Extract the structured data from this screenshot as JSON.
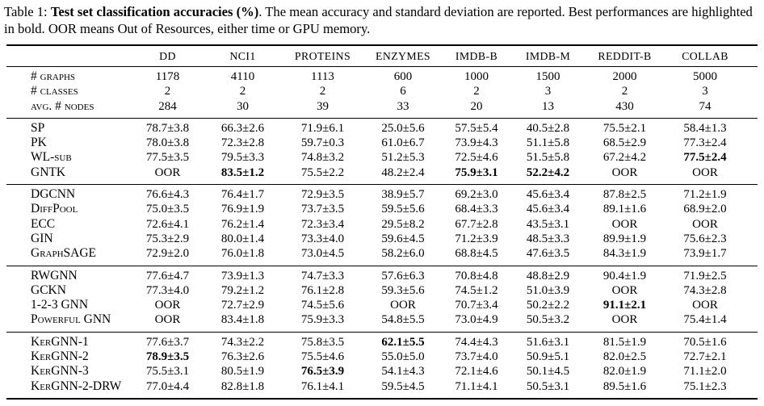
{
  "caption": {
    "prefix": "Table 1: ",
    "bold": "Test set classification accuracies (%)",
    "rest": ". The mean accuracy and standard deviation are reported. Best performances are highlighted in bold. OOR means Out of Resources, either time or GPU memory."
  },
  "table": {
    "columns": [
      "DD",
      "NCI1",
      "PROTEINS",
      "ENZYMES",
      "IMDB-B",
      "IMDB-M",
      "REDDIT-B",
      "COLLAB"
    ],
    "sections": [
      {
        "name": "dataset-stats",
        "rows": [
          {
            "label": "# graphs",
            "values": [
              "1178",
              "4110",
              "1113",
              "600",
              "1000",
              "1500",
              "2000",
              "5000"
            ]
          },
          {
            "label": "# classes",
            "values": [
              "2",
              "2",
              "2",
              "6",
              "2",
              "3",
              "2",
              "3"
            ]
          },
          {
            "label": "avg. # nodes",
            "values": [
              "284",
              "30",
              "39",
              "33",
              "20",
              "13",
              "430",
              "74"
            ]
          }
        ]
      },
      {
        "name": "graph-kernels",
        "rows": [
          {
            "label": "SP",
            "values": [
              "78.7±3.8",
              "66.3±2.6",
              "71.9±6.1",
              "25.0±5.6",
              "57.5±5.4",
              "40.5±2.8",
              "75.5±2.1",
              "58.4±1.3"
            ]
          },
          {
            "label": "PK",
            "values": [
              "78.0±3.8",
              "72.3±2.8",
              "59.7±0.3",
              "61.0±6.7",
              "73.9±4.3",
              "51.1±5.8",
              "68.5±2.9",
              "77.3±2.4"
            ]
          },
          {
            "label": "WL-sub",
            "values": [
              "77.5±3.5",
              "79.5±3.3",
              "74.8±3.2",
              "51.2±5.3",
              "72.5±4.6",
              "51.5±5.8",
              "67.2±4.2",
              "77.5±2.4"
            ],
            "bold": [
              7
            ]
          },
          {
            "label": "GNTK",
            "values": [
              "OOR",
              "83.5±1.2",
              "75.5±2.2",
              "48.2±2.4",
              "75.9±3.1",
              "52.2±4.2",
              "OOR",
              "OOR"
            ],
            "bold": [
              1,
              4,
              5
            ]
          }
        ]
      },
      {
        "name": "gnn-baselines",
        "rows": [
          {
            "label": "DGCNN",
            "values": [
              "76.6±4.3",
              "76.4±1.7",
              "72.9±3.5",
              "38.9±5.7",
              "69.2±3.0",
              "45.6±3.4",
              "87.8±2.5",
              "71.2±1.9"
            ]
          },
          {
            "label": "DiffPool",
            "values": [
              "75.0±3.5",
              "76.9±1.9",
              "73.7±3.5",
              "59.5±5.6",
              "68.4±3.3",
              "45.6±3.4",
              "89.1±1.6",
              "68.9±2.0"
            ]
          },
          {
            "label": "ECC",
            "values": [
              "72.6±4.1",
              "76.2±1.4",
              "72.3±3.4",
              "29.5±8.2",
              "67.7±2.8",
              "43.5±3.1",
              "OOR",
              "OOR"
            ]
          },
          {
            "label": "GIN",
            "values": [
              "75.3±2.9",
              "80.0±1.4",
              "73.3±4.0",
              "59.6±4.5",
              "71.2±3.9",
              "48.5±3.3",
              "89.9±1.9",
              "75.6±2.3"
            ]
          },
          {
            "label": "GraphSAGE",
            "values": [
              "72.9±2.0",
              "76.0±1.8",
              "73.0±4.5",
              "58.2±6.0",
              "68.8±4.5",
              "47.6±3.5",
              "84.3±1.9",
              "73.9±1.7"
            ]
          }
        ]
      },
      {
        "name": "advanced-gnns",
        "rows": [
          {
            "label": "RWGNN",
            "values": [
              "77.6±4.7",
              "73.9±1.3",
              "74.7±3.3",
              "57.6±6.3",
              "70.8±4.8",
              "48.8±2.9",
              "90.4±1.9",
              "71.9±2.5"
            ]
          },
          {
            "label": "GCKN",
            "values": [
              "77.3±4.0",
              "79.2±1.2",
              "76.1±2.8",
              "59.3±5.6",
              "74.5±1.2",
              "51.0±3.9",
              "OOR",
              "74.3±2.8"
            ]
          },
          {
            "label": "1-2-3 GNN",
            "values": [
              "OOR",
              "72.7±2.9",
              "74.5±5.6",
              "OOR",
              "70.7±3.4",
              "50.2±2.2",
              "91.1±2.1",
              "OOR"
            ],
            "bold": [
              6
            ]
          },
          {
            "label": "Powerful GNN",
            "values": [
              "OOR",
              "83.4±1.8",
              "75.9±3.3",
              "54.8±5.5",
              "73.0±4.9",
              "50.5±3.2",
              "OOR",
              "75.4±1.4"
            ]
          }
        ]
      },
      {
        "name": "kergnn-variants",
        "rows": [
          {
            "label": "KerGNN-1",
            "values": [
              "77.6±3.7",
              "74.3±2.2",
              "75.8±3.5",
              "62.1±5.5",
              "74.4±4.3",
              "51.6±3.1",
              "81.5±1.9",
              "70.5±1.6"
            ],
            "bold": [
              3
            ]
          },
          {
            "label": "KerGNN-2",
            "values": [
              "78.9±3.5",
              "76.3±2.6",
              "75.5±4.6",
              "55.0±5.0",
              "73.7±4.0",
              "50.9±5.1",
              "82.0±2.5",
              "72.7±2.1"
            ],
            "bold": [
              0
            ]
          },
          {
            "label": "KerGNN-3",
            "values": [
              "75.5±3.1",
              "80.5±1.9",
              "76.5±3.9",
              "54.1±4.3",
              "72.1±4.6",
              "50.1±4.5",
              "82.0±1.9",
              "71.1±2.0"
            ],
            "bold": [
              2
            ]
          },
          {
            "label": "KerGNN-2-DRW",
            "values": [
              "77.0±4.4",
              "82.8±1.8",
              "76.1±4.1",
              "59.5±4.5",
              "71.1±4.1",
              "50.5±3.1",
              "89.5±1.6",
              "75.1±2.3"
            ]
          }
        ]
      }
    ]
  }
}
